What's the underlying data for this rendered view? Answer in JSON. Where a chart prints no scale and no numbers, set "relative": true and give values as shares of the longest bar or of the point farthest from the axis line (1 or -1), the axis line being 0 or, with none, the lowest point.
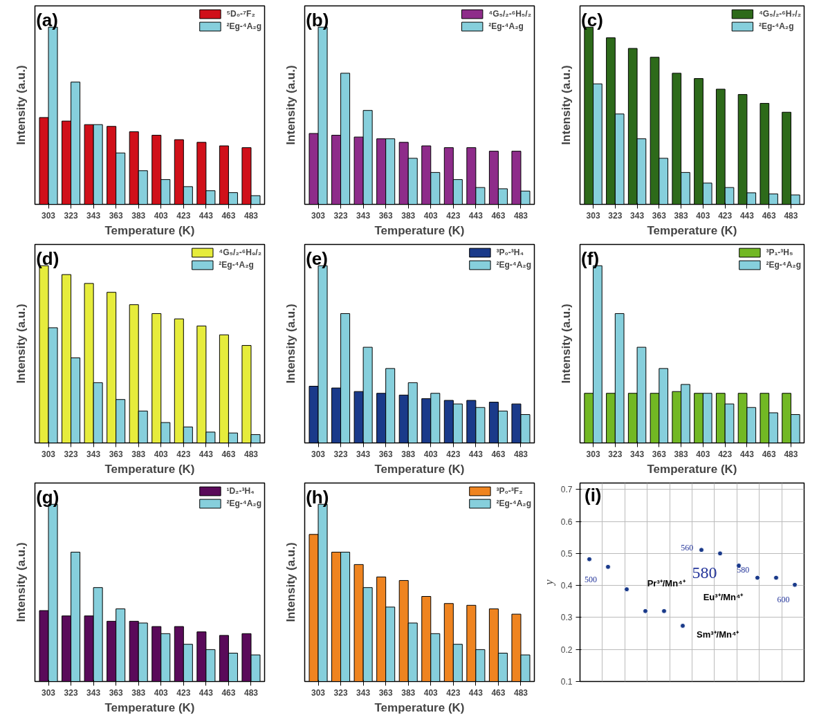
{
  "chart_data": [
    {
      "type": "bar",
      "title": "(a)",
      "xlabel": "Temperature (K)",
      "ylabel": "Intensity (a.u.)",
      "relative": true,
      "grid": false,
      "legend": "top right",
      "categories": [
        "303",
        "323",
        "343",
        "363",
        "383",
        "403",
        "423",
        "443",
        "463",
        "483"
      ],
      "series": [
        {
          "name": "⁵D₀-⁷F₂",
          "color": "#d0101a",
          "values": [
            0.49,
            0.47,
            0.45,
            0.44,
            0.41,
            0.39,
            0.365,
            0.35,
            0.33,
            0.32
          ]
        },
        {
          "name": "²Eg-⁴A₂g",
          "color": "#86cfdc",
          "values": [
            1,
            0.69,
            0.45,
            0.29,
            0.19,
            0.14,
            0.1,
            0.077,
            0.066,
            0.049
          ]
        }
      ]
    },
    {
      "type": "bar",
      "title": "(b)",
      "xlabel": "Temperature (K)",
      "ylabel": "Intensity (a.u.)",
      "relative": true,
      "grid": false,
      "legend": "top right",
      "categories": [
        "303",
        "323",
        "343",
        "363",
        "383",
        "403",
        "423",
        "443",
        "463",
        "483"
      ],
      "series": [
        {
          "name": "⁴G₅/₂-⁶H₅/₂",
          "color": "#8e2c8a",
          "values": [
            0.4,
            0.39,
            0.38,
            0.37,
            0.35,
            0.33,
            0.32,
            0.32,
            0.3,
            0.3
          ]
        },
        {
          "name": "²Eg-⁴A₂g",
          "color": "#86cfdc",
          "values": [
            1,
            0.74,
            0.53,
            0.37,
            0.26,
            0.18,
            0.14,
            0.095,
            0.088,
            0.075
          ]
        }
      ]
    },
    {
      "type": "bar",
      "title": "(c)",
      "xlabel": "Temperature (K)",
      "ylabel": "Intensity (a.u.)",
      "relative": true,
      "grid": false,
      "legend": "top right",
      "categories": [
        "303",
        "323",
        "343",
        "363",
        "383",
        "403",
        "423",
        "443",
        "463",
        "483"
      ],
      "series": [
        {
          "name": "⁴G₅/₂-⁶H₇/₂",
          "color": "#2d6a1a",
          "values": [
            1,
            0.94,
            0.88,
            0.83,
            0.74,
            0.71,
            0.65,
            0.62,
            0.57,
            0.52
          ]
        },
        {
          "name": "²Eg-⁴A₂g",
          "color": "#86cfdc",
          "values": [
            0.68,
            0.51,
            0.37,
            0.26,
            0.18,
            0.12,
            0.095,
            0.065,
            0.059,
            0.053
          ]
        }
      ]
    },
    {
      "type": "bar",
      "title": "(d)",
      "xlabel": "Temperature (K)",
      "ylabel": "Intensity (a.u.)",
      "relative": true,
      "grid": false,
      "legend": "top right",
      "categories": [
        "303",
        "323",
        "343",
        "363",
        "383",
        "403",
        "423",
        "443",
        "463",
        "483"
      ],
      "series": [
        {
          "name": "⁴G₅/₂-⁶H₉/₂",
          "color": "#e6ec3c",
          "values": [
            1,
            0.95,
            0.9,
            0.85,
            0.78,
            0.73,
            0.7,
            0.66,
            0.61,
            0.55
          ]
        },
        {
          "name": "²Eg-⁴A₂g",
          "color": "#86cfdc",
          "values": [
            0.65,
            0.48,
            0.34,
            0.245,
            0.18,
            0.115,
            0.09,
            0.061,
            0.056,
            0.047
          ]
        }
      ]
    },
    {
      "type": "bar",
      "title": "(e)",
      "xlabel": "Temperature (K)",
      "ylabel": "Intensity (a.u.)",
      "relative": true,
      "grid": false,
      "legend": "top right",
      "categories": [
        "303",
        "323",
        "343",
        "363",
        "383",
        "403",
        "423",
        "443",
        "463",
        "483"
      ],
      "series": [
        {
          "name": "³P₀-³H₄",
          "color": "#1a3a8a",
          "values": [
            0.32,
            0.31,
            0.29,
            0.28,
            0.27,
            0.25,
            0.24,
            0.24,
            0.23,
            0.22
          ]
        },
        {
          "name": "²Eg-⁴A₂g",
          "color": "#86cfdc",
          "values": [
            1,
            0.73,
            0.54,
            0.42,
            0.34,
            0.28,
            0.22,
            0.2,
            0.18,
            0.16
          ]
        }
      ]
    },
    {
      "type": "bar",
      "title": "(f)",
      "xlabel": "Temperature (K)",
      "ylabel": "Intensity (a.u.)",
      "relative": true,
      "grid": false,
      "legend": "top right",
      "categories": [
        "303",
        "323",
        "343",
        "363",
        "383",
        "403",
        "423",
        "443",
        "463",
        "483"
      ],
      "series": [
        {
          "name": "³P₁-³H₅",
          "color": "#72b824",
          "values": [
            0.28,
            0.28,
            0.28,
            0.28,
            0.29,
            0.28,
            0.28,
            0.28,
            0.28,
            0.28
          ]
        },
        {
          "name": "²Eg-⁴A₂g",
          "color": "#86cfdc",
          "values": [
            1,
            0.73,
            0.54,
            0.42,
            0.33,
            0.28,
            0.22,
            0.2,
            0.17,
            0.16
          ]
        }
      ]
    },
    {
      "type": "bar",
      "title": "(g)",
      "xlabel": "Temperature (K)",
      "ylabel": "Intensity (a.u.)",
      "relative": true,
      "grid": false,
      "legend": "top right",
      "categories": [
        "303",
        "323",
        "343",
        "363",
        "383",
        "403",
        "423",
        "443",
        "463",
        "483"
      ],
      "series": [
        {
          "name": "¹D₂-³H₄",
          "color": "#5a0a5a",
          "values": [
            0.4,
            0.37,
            0.37,
            0.34,
            0.34,
            0.31,
            0.31,
            0.28,
            0.26,
            0.27
          ]
        },
        {
          "name": "²Eg-⁴A₂g",
          "color": "#86cfdc",
          "values": [
            1,
            0.73,
            0.53,
            0.41,
            0.33,
            0.27,
            0.21,
            0.18,
            0.16,
            0.15
          ]
        }
      ]
    },
    {
      "type": "bar",
      "title": "(h)",
      "xlabel": "Temperature (K)",
      "ylabel": "Intensity (a.u.)",
      "relative": true,
      "grid": false,
      "legend": "top right",
      "categories": [
        "303",
        "323",
        "343",
        "363",
        "383",
        "403",
        "423",
        "443",
        "463",
        "483"
      ],
      "series": [
        {
          "name": "³P₀-³F₂",
          "color": "#ef8420",
          "values": [
            0.83,
            0.73,
            0.66,
            0.59,
            0.57,
            0.48,
            0.44,
            0.43,
            0.41,
            0.38
          ]
        },
        {
          "name": "²Eg-⁴A₂g",
          "color": "#86cfdc",
          "values": [
            1,
            0.73,
            0.53,
            0.42,
            0.33,
            0.27,
            0.21,
            0.18,
            0.16,
            0.15
          ]
        }
      ]
    },
    {
      "type": "scatter",
      "title": "(i)",
      "ylabel": "y",
      "ylim": [
        0.1,
        0.72
      ],
      "yticks": [
        0.1,
        0.2,
        0.3,
        0.4,
        0.5,
        0.6,
        0.7
      ],
      "grid": true,
      "tick_labels": "y",
      "marker": "circle",
      "categories": [
        null,
        null,
        null,
        null,
        null,
        null,
        null,
        null,
        null,
        null,
        null,
        null
      ],
      "series": [
        {
          "color": "#1a3a8a",
          "values": [
            0.482,
            0.458,
            0.388,
            0.32,
            0.32,
            0.274,
            0.511,
            0.5,
            0.462,
            0.424,
            0.424,
            0.402
          ]
        }
      ],
      "annotations": [
        "Pr³⁺/Mn⁴⁺",
        "Eu³⁺/Mn⁴⁺",
        "Sm³⁺/Mn⁴⁺",
        "580",
        "560",
        "500",
        "580",
        "600"
      ]
    }
  ]
}
